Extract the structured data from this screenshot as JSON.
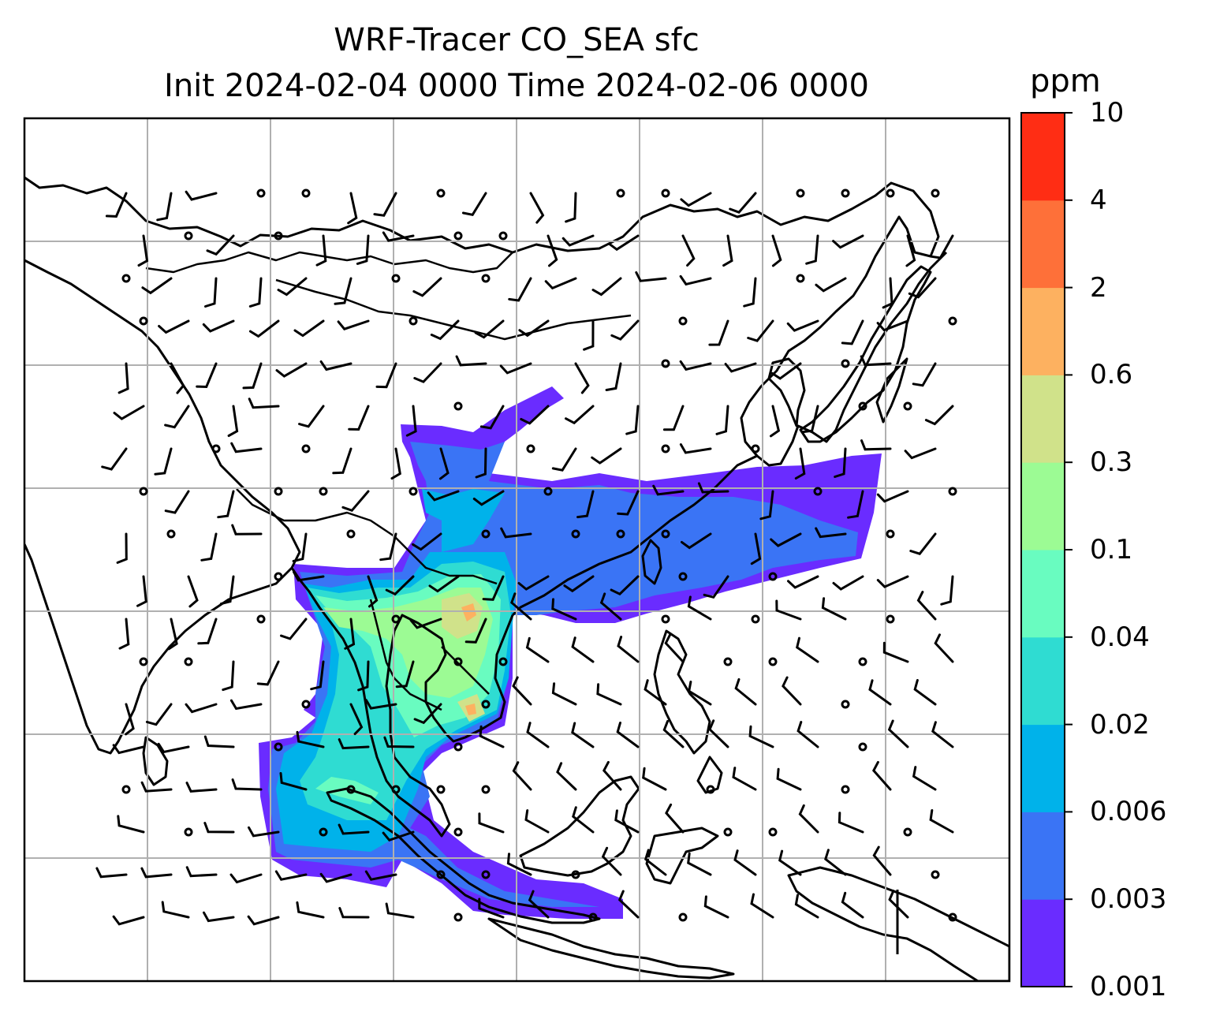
{
  "title_line1": "WRF-Tracer CO_SEA sfc",
  "title_line2": "Init 2024-02-04 0000 Time 2024-02-06 0000",
  "colorbar": {
    "unit": "ppm",
    "levels": [
      "0.001",
      "0.003",
      "0.006",
      "0.02",
      "0.04",
      "0.1",
      "0.3",
      "0.6",
      "2",
      "4",
      "10"
    ],
    "colors": [
      "#6a2cff",
      "#3a74f5",
      "#00b2ea",
      "#2fdcd2",
      "#69fcc0",
      "#9cfb94",
      "#d0e28a",
      "#fdb160",
      "#fe7039",
      "#ff2d14"
    ]
  },
  "map": {
    "variable": "CO_SEA tracer, surface",
    "overlays": [
      "coastlines",
      "country-borders",
      "lat-lon-gridlines",
      "wind-barbs"
    ],
    "grid": true
  }
}
